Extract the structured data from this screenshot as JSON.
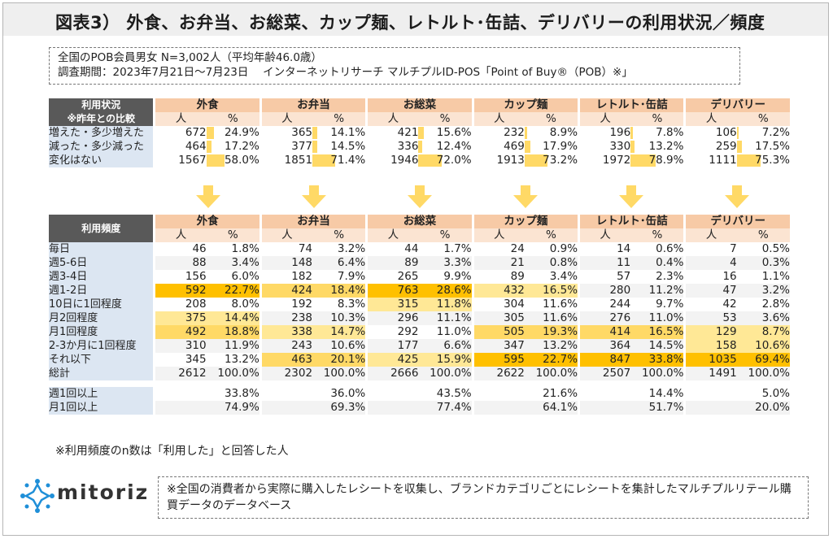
{
  "title": "図表3） 外食、お弁当、お総菜、カップ麺、レトルト･缶詰、デリバリーの利用状況／頻度",
  "info": {
    "line1": "全国のPOB会員男女 N=3,002人（平均年齢46.0歳）",
    "line2": "調査期間：2023年7月21日～7月23日　 インターネットリサーチ マルチプルID-POS「Point of Buy®（POB）※」"
  },
  "categories": [
    "外食",
    "お弁当",
    "お総菜",
    "カップ麺",
    "レトルト･缶詰",
    "デリバリー"
  ],
  "sub_headers": {
    "n": "人",
    "p": "%"
  },
  "usage": {
    "header": "利用状況\n※昨年との比較",
    "rows": [
      {
        "label": "増えた・多少増えた",
        "n": [
          "672",
          "365",
          "421",
          "232",
          "196",
          "106"
        ],
        "p": [
          "24.9%",
          "14.1%",
          "15.6%",
          "8.9%",
          "7.8%",
          "7.2%"
        ],
        "v": [
          24.9,
          14.1,
          15.6,
          8.9,
          7.8,
          7.2
        ]
      },
      {
        "label": "減った・多少減った",
        "n": [
          "464",
          "377",
          "336",
          "469",
          "330",
          "259"
        ],
        "p": [
          "17.2%",
          "14.5%",
          "12.4%",
          "17.9%",
          "13.2%",
          "17.5%"
        ],
        "v": [
          17.2,
          14.5,
          12.4,
          17.9,
          13.2,
          17.5
        ]
      },
      {
        "label": "変化はない",
        "n": [
          "1567",
          "1851",
          "1946",
          "1913",
          "1972",
          "1111"
        ],
        "p": [
          "58.0%",
          "71.4%",
          "72.0%",
          "73.2%",
          "78.9%",
          "75.3%"
        ],
        "v": [
          58.0,
          71.4,
          72.0,
          73.2,
          78.9,
          75.3
        ]
      }
    ]
  },
  "frequency": {
    "header": "利用頻度",
    "rows": [
      {
        "label": "毎日",
        "n": [
          "46",
          "74",
          "44",
          "24",
          "14",
          "7"
        ],
        "p": [
          "1.8%",
          "3.2%",
          "1.7%",
          "0.9%",
          "0.6%",
          "0.5%"
        ],
        "h": [
          0,
          0,
          0,
          0,
          0,
          0
        ]
      },
      {
        "label": "週5-6日",
        "n": [
          "88",
          "148",
          "89",
          "21",
          "11",
          "4"
        ],
        "p": [
          "3.4%",
          "6.4%",
          "3.3%",
          "0.8%",
          "0.4%",
          "0.3%"
        ],
        "h": [
          0,
          0,
          0,
          0,
          0,
          0
        ]
      },
      {
        "label": "週3-4日",
        "n": [
          "156",
          "182",
          "265",
          "89",
          "57",
          "16"
        ],
        "p": [
          "6.0%",
          "7.9%",
          "9.9%",
          "3.4%",
          "2.3%",
          "1.1%"
        ],
        "h": [
          0,
          0,
          0,
          0,
          0,
          0
        ]
      },
      {
        "label": "週1-2日",
        "n": [
          "592",
          "424",
          "763",
          "432",
          "280",
          "47"
        ],
        "p": [
          "22.7%",
          "18.4%",
          "28.6%",
          "16.5%",
          "11.2%",
          "3.2%"
        ],
        "h": [
          3,
          2,
          3,
          1,
          0,
          0
        ]
      },
      {
        "label": "10日に1回程度",
        "n": [
          "208",
          "192",
          "315",
          "304",
          "244",
          "42"
        ],
        "p": [
          "8.0%",
          "8.3%",
          "11.8%",
          "11.6%",
          "9.7%",
          "2.8%"
        ],
        "h": [
          0,
          0,
          1,
          0,
          0,
          0
        ]
      },
      {
        "label": "月2回程度",
        "n": [
          "375",
          "238",
          "296",
          "305",
          "276",
          "53"
        ],
        "p": [
          "14.4%",
          "10.3%",
          "11.1%",
          "11.6%",
          "11.0%",
          "3.6%"
        ],
        "h": [
          1,
          0,
          0,
          0,
          0,
          0
        ]
      },
      {
        "label": "月1回程度",
        "n": [
          "492",
          "338",
          "292",
          "505",
          "414",
          "129"
        ],
        "p": [
          "18.8%",
          "14.7%",
          "11.0%",
          "19.3%",
          "16.5%",
          "8.7%"
        ],
        "h": [
          2,
          1,
          0,
          2,
          2,
          1
        ]
      },
      {
        "label": "2-3か月に1回程度",
        "n": [
          "310",
          "243",
          "177",
          "347",
          "364",
          "158"
        ],
        "p": [
          "11.9%",
          "10.6%",
          "6.6%",
          "13.2%",
          "14.5%",
          "10.6%"
        ],
        "h": [
          0,
          0,
          0,
          0,
          0,
          1
        ]
      },
      {
        "label": "それ以下",
        "n": [
          "345",
          "463",
          "425",
          "595",
          "847",
          "1035"
        ],
        "p": [
          "13.2%",
          "20.1%",
          "15.9%",
          "22.7%",
          "33.8%",
          "69.4%"
        ],
        "h": [
          0,
          2,
          1,
          3,
          3,
          3
        ]
      },
      {
        "label": "総計",
        "n": [
          "2612",
          "2302",
          "2666",
          "2622",
          "2507",
          "1491"
        ],
        "p": [
          "100.0%",
          "100.0%",
          "100.0%",
          "100.0%",
          "100.0%",
          "100.0%"
        ],
        "h": [
          0,
          0,
          0,
          0,
          0,
          0
        ]
      }
    ],
    "summary": [
      {
        "label": "週1回以上",
        "p": [
          "33.8%",
          "36.0%",
          "43.5%",
          "21.6%",
          "14.4%",
          "5.0%"
        ]
      },
      {
        "label": "月1回以上",
        "p": [
          "74.9%",
          "69.3%",
          "77.4%",
          "64.1%",
          "51.7%",
          "20.0%"
        ]
      }
    ]
  },
  "note": "※利用頻度のn数は「利用した」と回答した人",
  "logo_text": "mitoriz",
  "footer": "※全国の消費者から実際に購入したレシートを収集し、ブランドカテゴリごとにレシートを集計したマルチプルリテール購買データのデータベース",
  "colors": {
    "header_cat": "#f7caa6",
    "label_bg": "#dce6f2",
    "bar": "#ffd966",
    "arrow": "#ffd966",
    "logo": "#1f8fd8"
  }
}
